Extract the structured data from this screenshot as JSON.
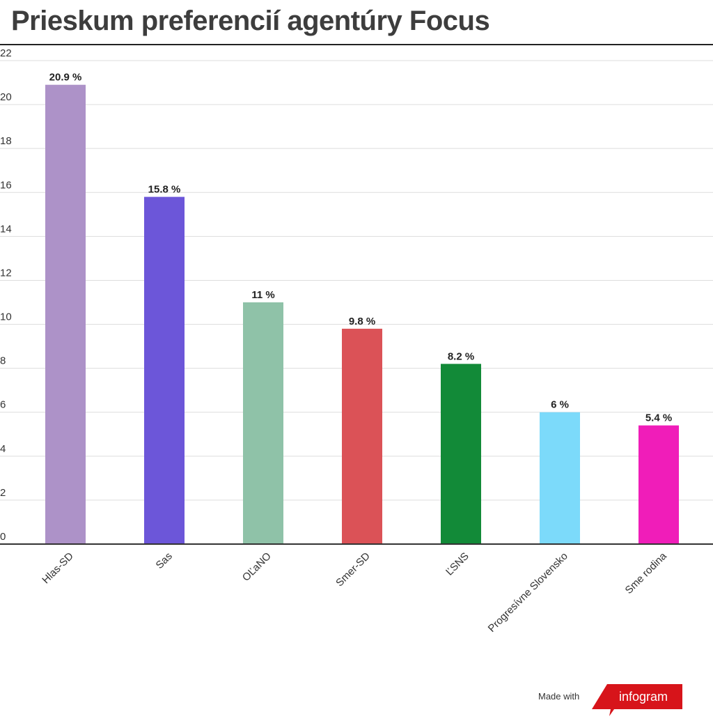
{
  "title": "Prieskum preferencií agentúry Focus",
  "footer": {
    "made_with": "Made with",
    "brand": "infogram"
  },
  "colors": {
    "brand_red": "#d7141a",
    "grid": "#dddddd",
    "axis": "#333333"
  },
  "chart_data": {
    "type": "bar",
    "title": "Prieskum preferencií agentúry Focus",
    "xlabel": "",
    "ylabel": "",
    "ylim": [
      0,
      22
    ],
    "yticks": [
      0,
      2,
      4,
      6,
      8,
      10,
      12,
      14,
      16,
      18,
      20,
      22
    ],
    "grid": true,
    "categories": [
      "Hlas-SD",
      "Sas",
      "OĽaNO",
      "Smer-SD",
      "ĽSNS",
      "Progresívne Slovensko",
      "Sme rodina"
    ],
    "values": [
      20.9,
      15.8,
      11,
      9.8,
      8.2,
      6,
      5.4
    ],
    "value_labels": [
      "20.9 %",
      "15.8 %",
      "11 %",
      "9.8 %",
      "8.2 %",
      "6 %",
      "5.4 %"
    ],
    "bar_colors": [
      "#ad92c8",
      "#6c56d9",
      "#8fc2a8",
      "#db5257",
      "#128a38",
      "#7cdafa",
      "#f01db9"
    ]
  }
}
